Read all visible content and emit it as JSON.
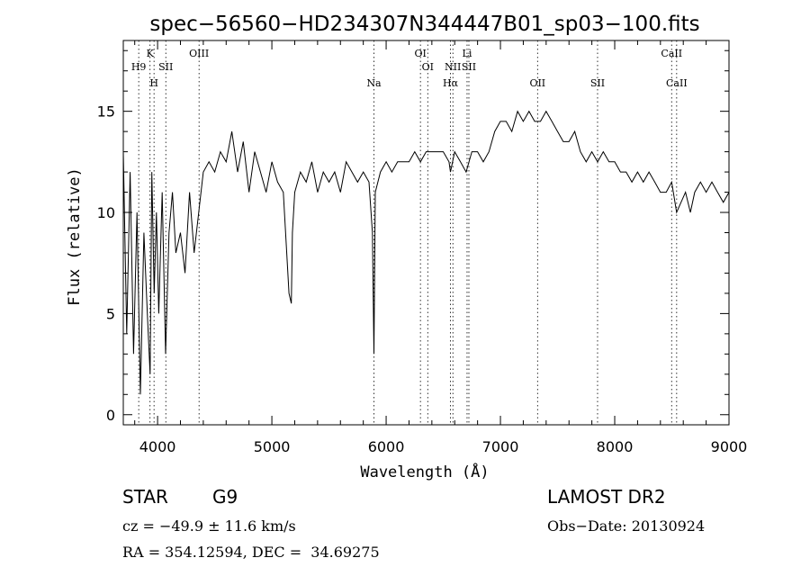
{
  "chart_data": {
    "type": "line",
    "title": "spec−56560−HD234307N344447B01_sp03−100.fits",
    "xlabel": "Wavelength (Å)",
    "ylabel": "Flux (relative)",
    "xlim": [
      3700,
      9000
    ],
    "ylim": [
      -0.5,
      18.5
    ],
    "x_ticks": [
      4000,
      5000,
      6000,
      7000,
      8000,
      9000
    ],
    "y_ticks": [
      0,
      5,
      10,
      15
    ],
    "x_tick_labels": [
      "4000",
      "5000",
      "6000",
      "7000",
      "8000",
      "9000"
    ],
    "y_tick_labels": [
      "0",
      "5",
      "10",
      "15"
    ],
    "grid": false,
    "line_color": "#000000",
    "series": [
      {
        "x": [
          3700,
          3730,
          3760,
          3790,
          3820,
          3850,
          3880,
          3910,
          3935,
          3950,
          3970,
          3990,
          4010,
          4040,
          4070,
          4100,
          4130,
          4160,
          4200,
          4240,
          4280,
          4320,
          4360,
          4400,
          4450,
          4500,
          4550,
          4600,
          4650,
          4700,
          4750,
          4800,
          4850,
          4900,
          4950,
          5000,
          5050,
          5100,
          5150,
          5170,
          5180,
          5200,
          5250,
          5300,
          5350,
          5400,
          5450,
          5500,
          5550,
          5600,
          5650,
          5700,
          5750,
          5800,
          5850,
          5880,
          5893,
          5905,
          5950,
          6000,
          6050,
          6100,
          6150,
          6200,
          6250,
          6300,
          6350,
          6400,
          6450,
          6500,
          6550,
          6563,
          6600,
          6650,
          6700,
          6750,
          6800,
          6850,
          6900,
          6950,
          7000,
          7050,
          7100,
          7150,
          7200,
          7250,
          7300,
          7350,
          7400,
          7450,
          7500,
          7550,
          7600,
          7650,
          7700,
          7750,
          7800,
          7850,
          7900,
          7950,
          8000,
          8050,
          8100,
          8150,
          8200,
          8250,
          8300,
          8350,
          8400,
          8450,
          8498,
          8542,
          8580,
          8620,
          8662,
          8700,
          8750,
          8800,
          8850,
          8900,
          8950,
          9000
        ],
        "y": [
          13,
          4,
          12,
          3,
          10,
          1,
          9,
          5,
          2,
          12,
          6,
          10,
          5,
          11,
          3,
          9,
          11,
          8,
          9,
          7,
          11,
          8,
          10,
          12,
          12.5,
          12,
          13,
          12.5,
          14,
          12,
          13.5,
          11,
          13,
          12,
          11,
          12.5,
          11.5,
          11,
          6,
          5.5,
          9,
          11,
          12,
          11.5,
          12.5,
          11,
          12,
          11.5,
          12,
          11,
          12.5,
          12,
          11.5,
          12,
          11.5,
          9,
          3,
          11,
          12,
          12.5,
          12,
          12.5,
          12.5,
          12.5,
          13,
          12.5,
          13,
          13,
          13,
          13,
          12.5,
          12,
          13,
          12.5,
          12,
          13,
          13,
          12.5,
          13,
          14,
          14.5,
          14.5,
          14,
          15,
          14.5,
          15,
          14.5,
          14.5,
          15,
          14.5,
          14,
          13.5,
          13.5,
          14,
          13,
          12.5,
          13,
          12.5,
          13,
          12.5,
          12.5,
          12,
          12,
          11.5,
          12,
          11.5,
          12,
          11.5,
          11,
          11,
          11.5,
          10,
          10.5,
          11,
          10,
          11,
          11.5,
          11,
          11.5,
          11,
          10.5,
          11
        ]
      }
    ],
    "line_annotations": [
      {
        "label": "H9",
        "x": 3835,
        "row": 2
      },
      {
        "label": "K",
        "x": 3934,
        "row": 1
      },
      {
        "label": "H",
        "x": 3969,
        "row": 3
      },
      {
        "label": "SII",
        "x": 4072,
        "row": 2
      },
      {
        "label": "OIII",
        "x": 4363,
        "row": 1
      },
      {
        "label": "Na",
        "x": 5893,
        "row": 3
      },
      {
        "label": "OI",
        "x": 6300,
        "row": 1
      },
      {
        "label": "OI",
        "x": 6364,
        "row": 2
      },
      {
        "label": "NII",
        "x": 6584,
        "row": 2
      },
      {
        "label": "Hα",
        "x": 6563,
        "row": 3
      },
      {
        "label": "Li",
        "x": 6708,
        "row": 1
      },
      {
        "label": "SII",
        "x": 6724,
        "row": 2
      },
      {
        "label": "OII",
        "x": 7325,
        "row": 3
      },
      {
        "label": "SII",
        "x": 7850,
        "row": 3
      },
      {
        "label": "CaII",
        "x": 8498,
        "row": 1
      },
      {
        "label": "CaII",
        "x": 8542,
        "row": 3
      }
    ]
  },
  "info": {
    "object_type": "STAR",
    "subclass": "G9",
    "survey": "LAMOST DR2",
    "cz": "cz = −49.9 ± 11.6 km/s",
    "obs_date": "Obs−Date: 20130924",
    "coords": "RA = 354.12594, DEC =  34.69275"
  }
}
